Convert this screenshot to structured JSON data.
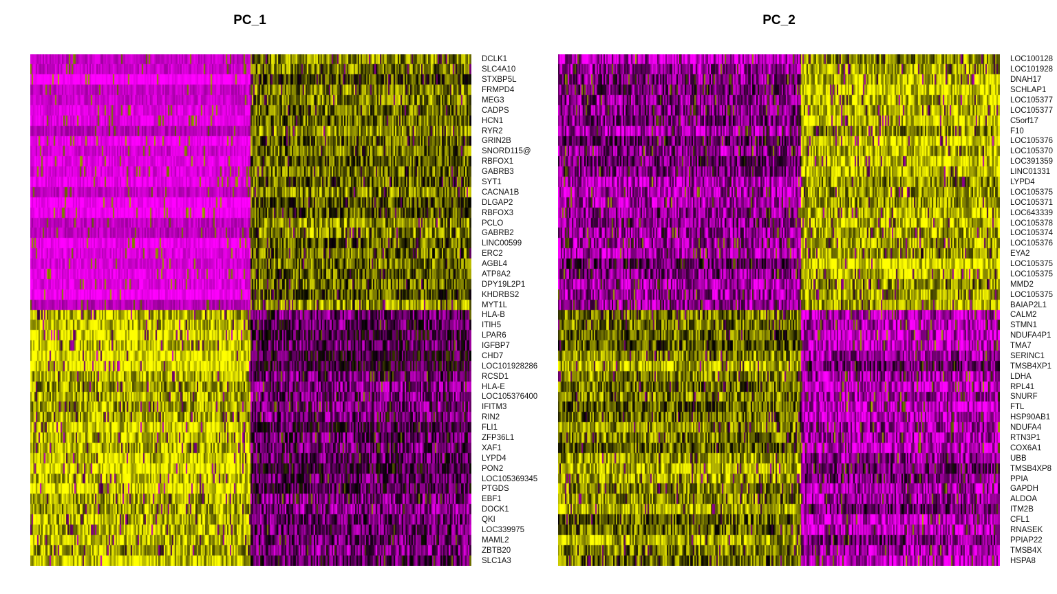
{
  "chart_data": [
    {
      "type": "heatmap",
      "title": "PC_1",
      "colors": {
        "low": "#ff00ff",
        "mid": "#000000",
        "high": "#ffff00"
      },
      "split_fraction": 0.5,
      "split_col": 0.5,
      "genes": [
        "DCLK1",
        "SLC4A10",
        "STXBP5L",
        "FRMPD4",
        "MEG3",
        "CADPS",
        "HCN1",
        "RYR2",
        "GRIN2B",
        "SNORD115@",
        "RBFOX1",
        "GABRB3",
        "SYT1",
        "CACNA1B",
        "DLGAP2",
        "RBFOX3",
        "PCLO",
        "GABRB2",
        "LINC00599",
        "ERC2",
        "AGBL4",
        "ATP8A2",
        "DPY19L2P1",
        "KHDRBS2",
        "MYT1L",
        "HLA-B",
        "ITIH5",
        "LPAR6",
        "IGFBP7",
        "CHD7",
        "LOC101928286",
        "RCSD1",
        "HLA-E",
        "LOC105376400",
        "IFITM3",
        "RIN2",
        "FLI1",
        "ZFP36L1",
        "XAF1",
        "LYPD4",
        "PON2",
        "LOC105369345",
        "PTGDS",
        "EBF1",
        "DOCK1",
        "QKI",
        "LOC339975",
        "MAML2",
        "ZBTB20",
        "SLC1A3"
      ]
    },
    {
      "type": "heatmap",
      "title": "PC_2",
      "colors": {
        "low": "#ff00ff",
        "mid": "#000000",
        "high": "#ffff00"
      },
      "split_fraction": 0.5,
      "split_col": 0.55,
      "genes": [
        "LOC100128",
        "LOC101928",
        "DNAH17",
        "SCHLAP1",
        "LOC105377",
        "LOC105377",
        "C5orf17",
        "F10",
        "LOC105376",
        "LOC105370",
        "LOC391359",
        "LINC01331",
        "LYPD4",
        "LOC105375",
        "LOC105371",
        "LOC643339",
        "LOC105378",
        "LOC105374",
        "LOC105376",
        "EYA2",
        "LOC105375",
        "LOC105375",
        "MMD2",
        "LOC105375",
        "BAIAP2L1",
        "CALM2",
        "STMN1",
        "NDUFA4P1",
        "TMA7",
        "SERINC1",
        "TMSB4XP1",
        "LDHA",
        "RPL41",
        "SNURF",
        "FTL",
        "HSP90AB1",
        "NDUFA4",
        "RTN3P1",
        "COX6A1",
        "UBB",
        "TMSB4XP8",
        "PPIA",
        "GAPDH",
        "ALDOA",
        "ITM2B",
        "CFL1",
        "RNASEK",
        "PPIAP22",
        "TMSB4X",
        "HSPA8"
      ]
    }
  ]
}
